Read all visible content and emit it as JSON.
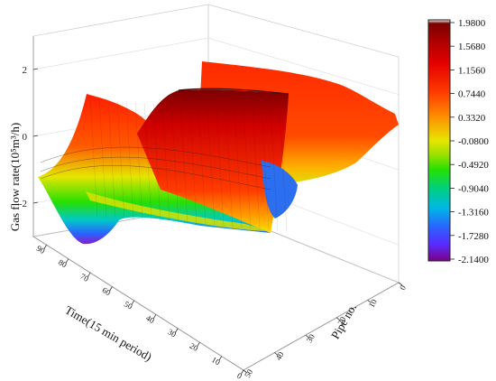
{
  "chart_data": {
    "type": "surface",
    "title": "",
    "zlabel": "Gas flow rate(10⁵m³/h)",
    "xlabel": "Time(15 min period)",
    "ylabel": "Pipe no.",
    "z_ticks": [
      "2",
      "0",
      "-2"
    ],
    "x_ticks": [
      "0",
      "10",
      "20",
      "30",
      "40",
      "50",
      "60",
      "70",
      "80",
      "90"
    ],
    "y_ticks": [
      "0",
      "10",
      "20",
      "30",
      "40",
      "50"
    ],
    "xlim": [
      0,
      96
    ],
    "ylim": [
      0,
      50
    ],
    "zlim": [
      -3,
      3
    ],
    "grid": true,
    "colorbar_labels": [
      "1.9800",
      "1.5680",
      "1.1560",
      "0.7440",
      "0.3320",
      "-0.0800",
      "-0.4920",
      "-0.9040",
      "-1.3160",
      "-1.7280",
      "-2.1400"
    ],
    "colorbar_range": [
      -2.14,
      1.98
    ],
    "colorbar_colors": [
      "#ffffff",
      "#7a0000",
      "#b40000",
      "#e40000",
      "#ff3b00",
      "#ff8c00",
      "#e6e600",
      "#9be100",
      "#27e000",
      "#00d080",
      "#00b8e6",
      "#2a63ff",
      "#5a2cff",
      "#8a1ccc",
      "#7b0085"
    ],
    "series": [
      {
        "time": [
          0,
          8,
          16,
          24,
          32,
          40,
          48,
          56,
          64,
          72,
          80,
          88,
          96
        ],
        "values": [
          1.2,
          0.8,
          1.0,
          1.6,
          1.9,
          1.8,
          1.7,
          1.6,
          1.5,
          1.4,
          1.3,
          1.2,
          1.1
        ]
      },
      {
        "time": [
          0,
          8,
          16,
          24,
          32,
          40,
          48,
          56,
          64,
          72,
          80,
          88,
          96
        ],
        "values": [
          0.2,
          -0.3,
          -0.1,
          0.9,
          1.4,
          1.3,
          1.2,
          1.1,
          1.0,
          0.9,
          0.8,
          0.7,
          0.6
        ]
      },
      {
        "time": [
          0,
          8,
          16,
          24,
          32,
          40,
          48,
          56,
          64,
          72,
          80,
          88,
          96
        ],
        "values": [
          -1.0,
          -1.9,
          -1.6,
          -0.5,
          -0.1,
          -0.2,
          -0.3,
          -0.3,
          -0.4,
          -0.4,
          -0.5,
          -0.6,
          -0.7
        ]
      },
      {
        "time": [
          0,
          8,
          16,
          24,
          32,
          40,
          48,
          56,
          64,
          72,
          80,
          88,
          96
        ],
        "values": [
          -0.6,
          -1.4,
          -1.2,
          -0.6,
          -0.5,
          -0.5,
          -0.5,
          -0.6,
          -0.6,
          -0.6,
          -0.7,
          -0.7,
          -0.8
        ]
      }
    ]
  }
}
